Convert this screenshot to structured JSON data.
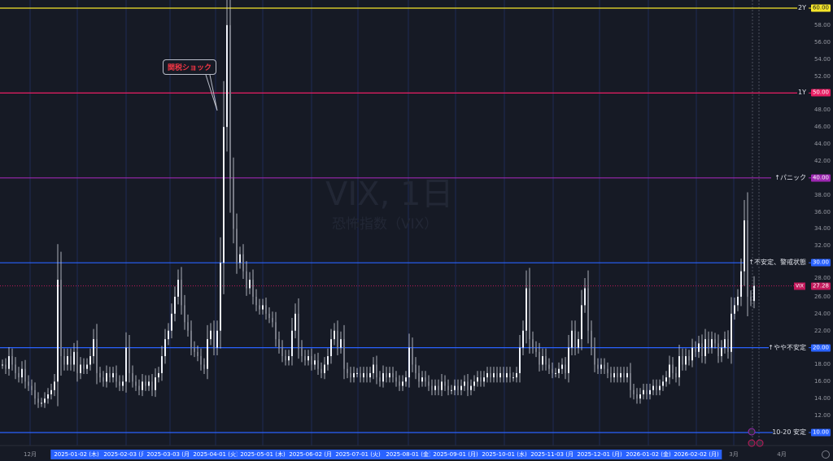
{
  "chart_data": {
    "type": "candlestick",
    "symbol": "VIX",
    "watermark_title": "VIX, 1日",
    "watermark_subtitle": "恐怖指数（VIX）",
    "ylim": [
      10,
      60
    ],
    "y_ticks": [
      12,
      14,
      16,
      18,
      22,
      24,
      26,
      28,
      32,
      34,
      36,
      38,
      42,
      44,
      46,
      48,
      52,
      54,
      56,
      58
    ],
    "x_date_labels": [
      "2025-01-02 (木)",
      "2025-02-03 (月)",
      "2025-03-03 (月)",
      "2025-04-01 (火)",
      "2025-05-01 (木)",
      "2025-06-02 (月)",
      "2025-07-01 (火)",
      "2025-08-01 (金)",
      "2025-09-01 (月)",
      "2025-10-01 (水)",
      "2025-11-03 (月)",
      "2025-12-01 (月)",
      "2026-01-02 (金)",
      "2026-02-02 (月)"
    ],
    "x_month_labels": [
      "12月",
      "3月",
      "4月"
    ],
    "close": [
      18,
      17.5,
      19,
      18,
      17,
      16.5,
      17.5,
      16,
      15.5,
      15,
      14,
      13.5,
      13.5,
      14,
      14.5,
      15,
      16,
      28,
      19,
      18,
      19,
      18,
      19.5,
      17,
      18,
      17.5,
      18,
      19,
      21,
      17,
      16.5,
      16,
      17,
      16.5,
      17,
      16,
      15.5,
      16,
      20,
      17,
      16,
      15.5,
      15,
      16,
      15.5,
      16,
      15,
      16.5,
      17,
      19,
      21,
      22,
      24,
      26,
      28,
      25,
      23,
      22,
      20,
      19.5,
      19,
      18,
      17.5,
      21,
      22,
      20,
      22,
      30,
      46,
      58,
      40,
      34,
      30,
      31,
      29,
      27,
      28,
      26,
      25,
      24.5,
      25,
      24,
      23.5,
      23,
      21,
      20,
      19,
      18.5,
      19,
      22,
      24,
      20,
      19,
      18.5,
      19,
      18,
      18.5,
      17.5,
      17,
      18,
      19,
      21,
      22,
      20,
      21,
      17.5,
      17,
      16.5,
      17,
      17,
      16.5,
      17,
      16.5,
      17,
      18,
      16.5,
      16,
      17,
      16.5,
      17,
      16.5,
      16,
      15.5,
      16,
      16.5,
      20,
      18,
      17,
      16,
      16.5,
      16,
      15.5,
      15,
      15.5,
      15,
      16,
      15.5,
      15,
      15,
      15.5,
      15,
      15.5,
      16,
      15,
      15.5,
      16,
      16.5,
      16,
      16.5,
      17,
      16.5,
      17,
      16.5,
      17,
      16.5,
      17,
      16.5,
      16.5,
      17,
      20,
      22,
      27,
      21,
      20,
      19.5,
      18,
      19,
      18,
      17.5,
      17,
      17,
      17.5,
      18,
      17,
      20,
      22,
      20,
      21,
      25,
      27,
      22,
      20,
      18,
      17.5,
      18,
      17.5,
      17,
      16.5,
      17,
      16.5,
      17,
      16.5,
      17,
      15,
      14.5,
      14,
      14.5,
      15,
      14.5,
      15,
      15.5,
      15,
      15.5,
      16,
      16.5,
      18,
      17,
      16.5,
      19,
      18,
      19,
      18.5,
      20,
      19.5,
      20.5,
      19,
      21,
      20,
      21,
      20.5,
      19,
      20,
      21,
      19.5,
      24,
      25,
      26,
      29,
      35,
      26,
      25.5,
      27.28
    ],
    "last_price": {
      "label": "VIX",
      "value": "27.28",
      "color": "#c2185b"
    },
    "levels": [
      {
        "value": 60,
        "value_label": "60.00",
        "name": "2Y",
        "color": "#f5e52a",
        "text_color": "#131722"
      },
      {
        "value": 50,
        "value_label": "50.00",
        "name": "1Y",
        "color": "#e91e63",
        "text_color": "#ffffff"
      },
      {
        "value": 40,
        "value_label": "40.00",
        "name": "↑パニック",
        "color": "#9c27b0",
        "text_color": "#ffffff"
      },
      {
        "value": 30,
        "value_label": "30.00",
        "name": "↑不安定、警戒状態",
        "color": "#2962ff",
        "text_color": "#ffffff"
      },
      {
        "value": 20,
        "value_label": "20.00",
        "name": "↑やや不安定",
        "color": "#2962ff",
        "text_color": "#ffffff"
      },
      {
        "value": 10,
        "value_label": "10.00",
        "name": "10-20 安定",
        "color": "#2962ff",
        "text_color": "#ffffff"
      }
    ],
    "annotation": {
      "text": "関税ショック",
      "color": "#f23645"
    },
    "grid": "vertical-month-lines"
  }
}
